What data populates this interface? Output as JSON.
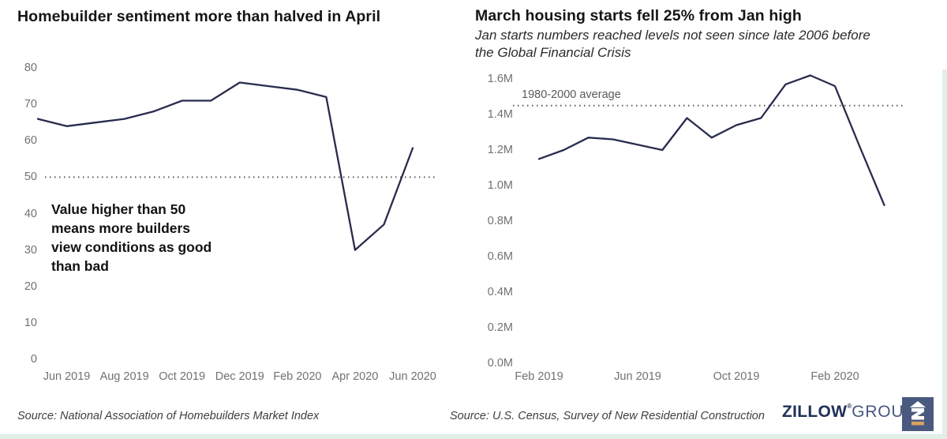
{
  "chart_data": [
    {
      "type": "line",
      "title": "Homebuilder sentiment more than halved in April",
      "x": [
        "May 2019",
        "Jun 2019",
        "Jul 2019",
        "Aug 2019",
        "Sep 2019",
        "Oct 2019",
        "Nov 2019",
        "Dec 2019",
        "Jan 2020",
        "Feb 2020",
        "Mar 2020",
        "Apr 2020",
        "May 2020",
        "Jun 2020"
      ],
      "values": [
        66,
        64,
        65,
        66,
        68,
        71,
        71,
        76,
        75,
        74,
        72,
        30,
        37,
        58
      ],
      "xtick_labels": [
        "Jun 2019",
        "Aug 2019",
        "Oct 2019",
        "Dec 2019",
        "Feb 2020",
        "Apr 2020",
        "Jun 2020"
      ],
      "xtick_month_index": [
        1,
        3,
        5,
        7,
        9,
        11,
        13
      ],
      "ytick_values": [
        80,
        70,
        60,
        50,
        40,
        30,
        20,
        10,
        0
      ],
      "ytick_labels": [
        "80",
        "70",
        "60",
        "50",
        "40",
        "30",
        "20",
        "10",
        "0"
      ],
      "ylim": [
        0,
        80
      ],
      "grid": false,
      "ref_line": {
        "value": 50,
        "style": "dotted"
      },
      "annotation_lines": [
        "Value higher than 50",
        "means more builders",
        "view conditions as good",
        "than bad"
      ],
      "line_color": "#282c4d",
      "ref_color": "#5a5a5a"
    },
    {
      "type": "line",
      "title": "March housing starts fell 25% from Jan high",
      "subtitle_lines": [
        "Jan starts numbers reached levels not seen since late 2006 before",
        "the Global Financial Crisis"
      ],
      "x": [
        "Feb 2019",
        "Mar 2019",
        "Apr 2019",
        "May 2019",
        "Jun 2019",
        "Jul 2019",
        "Aug 2019",
        "Sep 2019",
        "Oct 2019",
        "Nov 2019",
        "Dec 2019",
        "Jan 2020",
        "Feb 2020",
        "Mar 2020",
        "Apr 2020"
      ],
      "values": [
        1.15,
        1.2,
        1.27,
        1.26,
        1.23,
        1.2,
        1.38,
        1.27,
        1.34,
        1.38,
        1.57,
        1.62,
        1.56,
        1.22,
        0.89
      ],
      "units": "millions of housing starts (SAAR)",
      "xtick_labels": [
        "Feb 2019",
        "Jun 2019",
        "Oct 2019",
        "Feb 2020"
      ],
      "xtick_month_index": [
        0,
        4,
        8,
        12
      ],
      "ytick_values": [
        1.6,
        1.4,
        1.2,
        1.0,
        0.8,
        0.6,
        0.4,
        0.2,
        0.0
      ],
      "ytick_labels": [
        "1.6M",
        "1.4M",
        "1.2M",
        "1.0M",
        "0.8M",
        "0.6M",
        "0.4M",
        "0.2M",
        "0.0M"
      ],
      "ylim": [
        0,
        1.6
      ],
      "grid": false,
      "ref_line": {
        "value": 1.45,
        "style": "dotted",
        "label": "1980-2000 average"
      },
      "line_color": "#282c4d",
      "ref_color": "#5a5a5a"
    }
  ],
  "footer": {
    "left_source": "Source: National Association of Homebuilders Market Index",
    "right_source": "Source: U.S. Census, Survey of New Residential Construction",
    "brand_zillow": "ZILLOW",
    "brand_mark": "®",
    "brand_group": "GROUP"
  },
  "colors": {
    "line": "#282c4d",
    "dotted_reference": "#5a5a5a",
    "axis_text": "#717171",
    "logo_background": "#4a5a7e",
    "logo_gold": "#d7a360",
    "brand_navy": "#203057",
    "edge_strip": "#e0efe8"
  }
}
